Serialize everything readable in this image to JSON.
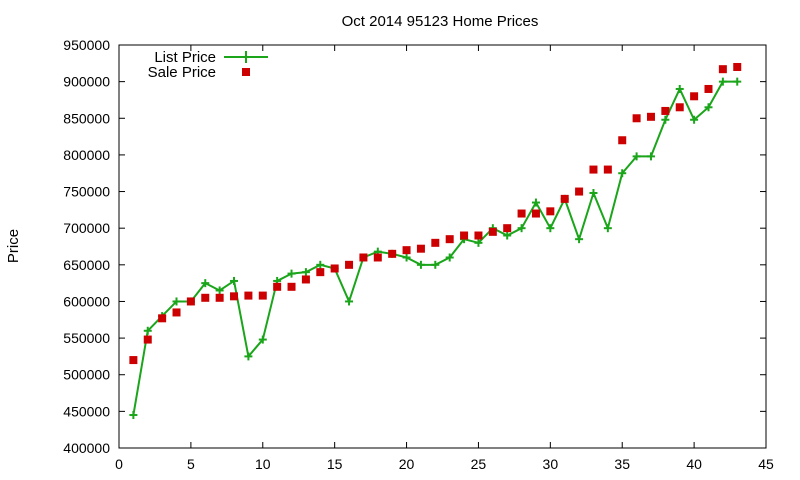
{
  "chart_data": {
    "type": "line",
    "title": "Oct 2014 95123 Home Prices",
    "xlabel": "",
    "ylabel": "Price",
    "xlim": [
      0,
      45
    ],
    "ylim": [
      400000,
      950000
    ],
    "xticks": [
      0,
      5,
      10,
      15,
      20,
      25,
      30,
      35,
      40,
      45
    ],
    "yticks": [
      400000,
      450000,
      500000,
      550000,
      600000,
      650000,
      700000,
      750000,
      800000,
      850000,
      900000,
      950000
    ],
    "grid": false,
    "legend_position": "top-left",
    "x": [
      1,
      2,
      3,
      4,
      5,
      6,
      7,
      8,
      9,
      10,
      11,
      12,
      13,
      14,
      15,
      16,
      17,
      18,
      19,
      20,
      21,
      22,
      23,
      24,
      25,
      26,
      27,
      28,
      29,
      30,
      31,
      32,
      33,
      34,
      35,
      36,
      37,
      38,
      39,
      40,
      41,
      42,
      43
    ],
    "series": [
      {
        "name": "List Price",
        "style": "line-plus",
        "color": "#1aa51a",
        "values": [
          445000,
          560000,
          580000,
          600000,
          600000,
          625000,
          615000,
          628000,
          525000,
          548000,
          628000,
          638000,
          640000,
          650000,
          645000,
          600000,
          660000,
          668000,
          665000,
          660000,
          650000,
          650000,
          660000,
          685000,
          680000,
          700000,
          690000,
          700000,
          735000,
          700000,
          740000,
          685000,
          748000,
          700000,
          775000,
          798000,
          798000,
          848000,
          890000,
          848000,
          865000,
          900000,
          900000
        ]
      },
      {
        "name": "Sale Price",
        "style": "square",
        "color": "#cc0000",
        "values": [
          520000,
          548000,
          577000,
          585000,
          600000,
          605000,
          605000,
          607000,
          608000,
          608000,
          620000,
          620000,
          630000,
          640000,
          645000,
          650000,
          660000,
          660000,
          665000,
          670000,
          672000,
          680000,
          685000,
          690000,
          690000,
          695000,
          700000,
          720000,
          720000,
          723000,
          740000,
          750000,
          780000,
          780000,
          820000,
          850000,
          852000,
          860000,
          865000,
          880000,
          890000,
          917000,
          920000
        ]
      }
    ]
  }
}
